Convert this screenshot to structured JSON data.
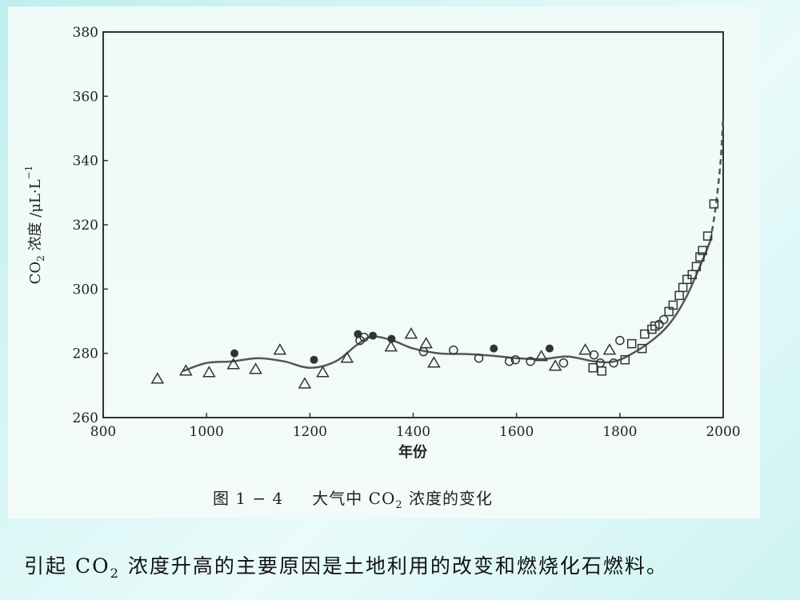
{
  "chart_data": {
    "type": "scatter",
    "xlabel": "年份",
    "ylabel_prefix": "CO",
    "ylabel_sub": "2",
    "ylabel_suffix": " 浓度 /μL·L",
    "ylabel_sup": "−1",
    "xlim": [
      800,
      2000
    ],
    "ylim": [
      260,
      380
    ],
    "xticks": [
      800,
      1000,
      1200,
      1400,
      1600,
      1800,
      2000
    ],
    "yticks": [
      260,
      280,
      300,
      320,
      340,
      360,
      380
    ],
    "grid": false,
    "series": [
      {
        "marker": "triangle",
        "points": [
          [
            905,
            272
          ],
          [
            960,
            274.5
          ],
          [
            1005,
            274
          ],
          [
            1052,
            276.5
          ],
          [
            1095,
            275
          ],
          [
            1142,
            281
          ],
          [
            1190,
            270.5
          ],
          [
            1225,
            274
          ],
          [
            1272,
            278.5
          ],
          [
            1357,
            282
          ],
          [
            1396,
            286
          ],
          [
            1425,
            283
          ],
          [
            1440,
            277
          ],
          [
            1648,
            279
          ],
          [
            1675,
            276
          ],
          [
            1733,
            281
          ],
          [
            1780,
            281
          ]
        ]
      },
      {
        "marker": "filled-circle",
        "points": [
          [
            1054,
            280
          ],
          [
            1208,
            278
          ],
          [
            1293,
            286
          ],
          [
            1322,
            285.5
          ],
          [
            1358,
            284.5
          ],
          [
            1556,
            281.5
          ],
          [
            1664,
            281.5
          ]
        ]
      },
      {
        "marker": "open-circle",
        "points": [
          [
            1297,
            284
          ],
          [
            1305,
            285
          ],
          [
            1420,
            280.5
          ],
          [
            1478,
            281
          ],
          [
            1527,
            278.5
          ],
          [
            1586,
            277.5
          ],
          [
            1598,
            278
          ],
          [
            1627,
            277.5
          ],
          [
            1691,
            277
          ],
          [
            1750,
            279.5
          ],
          [
            1762,
            277
          ],
          [
            1788,
            277
          ],
          [
            1800,
            284
          ],
          [
            1876,
            289
          ],
          [
            1885,
            290.5
          ]
        ]
      },
      {
        "marker": "open-square",
        "points": [
          [
            1748,
            275.5
          ],
          [
            1765,
            274.5
          ],
          [
            1810,
            278
          ],
          [
            1823,
            283
          ],
          [
            1843,
            281.5
          ],
          [
            1848,
            286
          ],
          [
            1862,
            287.5
          ],
          [
            1868,
            288.5
          ],
          [
            1895,
            293
          ],
          [
            1903,
            295
          ],
          [
            1915,
            298
          ],
          [
            1922,
            300.5
          ],
          [
            1930,
            303
          ],
          [
            1940,
            304.5
          ],
          [
            1948,
            307
          ],
          [
            1955,
            310
          ],
          [
            1960,
            312
          ],
          [
            1970,
            316.5
          ],
          [
            1982,
            326.5
          ]
        ]
      },
      {
        "marker": "line",
        "points": [
          [
            955,
            274.5
          ],
          [
            1000,
            277
          ],
          [
            1050,
            277.5
          ],
          [
            1100,
            278.5
          ],
          [
            1150,
            277.5
          ],
          [
            1200,
            275.5
          ],
          [
            1250,
            277.5
          ],
          [
            1290,
            282.5
          ],
          [
            1320,
            285.2
          ],
          [
            1360,
            284
          ],
          [
            1400,
            281.5
          ],
          [
            1450,
            280
          ],
          [
            1500,
            279.8
          ],
          [
            1550,
            279.3
          ],
          [
            1600,
            278.5
          ],
          [
            1650,
            278.2
          ],
          [
            1700,
            279
          ],
          [
            1750,
            277.5
          ],
          [
            1790,
            277.5
          ],
          [
            1830,
            280.5
          ],
          [
            1870,
            285
          ],
          [
            1900,
            290
          ],
          [
            1930,
            298
          ],
          [
            1960,
            309
          ],
          [
            1975,
            315
          ]
        ]
      },
      {
        "marker": "dashed-line",
        "points": [
          [
            1975,
            315
          ],
          [
            1985,
            325
          ],
          [
            1995,
            340
          ],
          [
            2000,
            354
          ]
        ]
      }
    ]
  },
  "caption": {
    "figure_no": "图 1 − 4",
    "title_prefix": "大气中 CO",
    "title_sub": "2",
    "title_suffix": " 浓度的变化"
  },
  "footer": {
    "prefix": "引起 CO",
    "sub": "2",
    "suffix": " 浓度升高的主要原因是土地利用的改变和燃烧化石燃料。"
  }
}
